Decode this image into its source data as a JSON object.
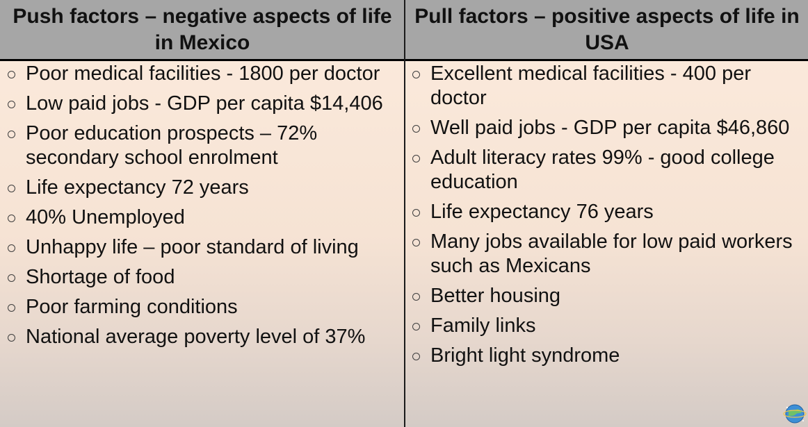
{
  "push": {
    "heading": "Push factors – negative aspects of life in Mexico",
    "items": [
      "Poor medical facilities - 1800 per doctor",
      "Low paid jobs - GDP per capita $14,406",
      "Poor education prospects – 72% secondary school enrolment",
      "Life expectancy 72 years",
      "40% Unemployed",
      "Unhappy life – poor standard of living",
      "Shortage of food",
      "Poor farming conditions",
      "National average poverty level of 37%"
    ]
  },
  "pull": {
    "heading": "Pull factors – positive aspects of life in USA",
    "items": [
      "Excellent medical facilities - 400 per doctor",
      "Well paid jobs - GDP per capita $46,860",
      "Adult literacy rates 99% - good college education",
      "Life expectancy 76 years",
      "Many jobs available for low paid workers such as Mexicans",
      "Better housing",
      "Family links",
      "Bright light syndrome"
    ]
  },
  "icons": {
    "bullet": "hollow-circle-bullet-icon",
    "logo": "globe-logo-icon"
  }
}
